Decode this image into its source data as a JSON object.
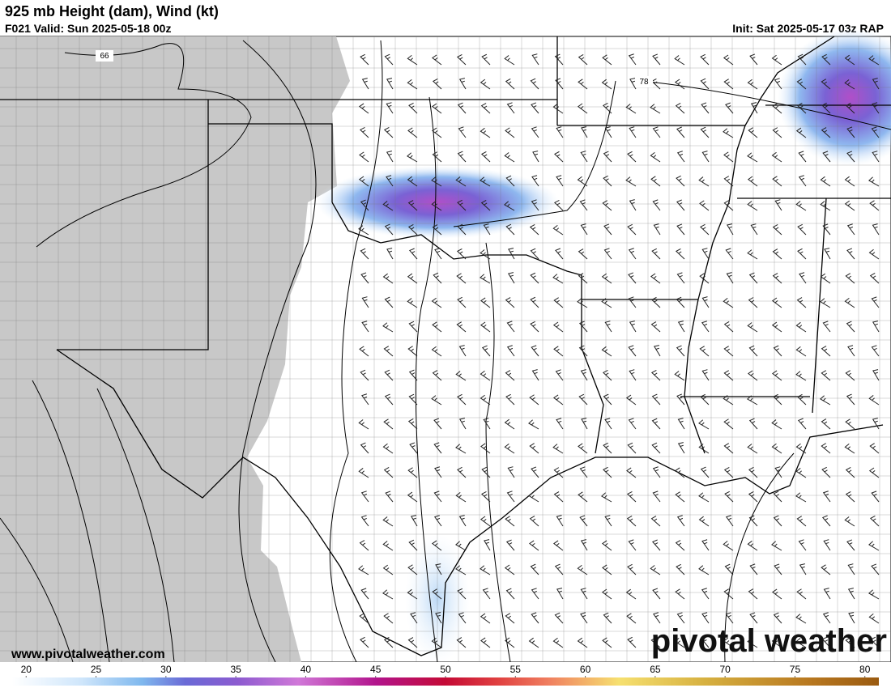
{
  "header": {
    "title": "925 mb Height (dam), Wind (kt)",
    "valid": "F021 Valid: Sun 2025-05-18 00z",
    "init": "Init: Sat 2025-05-17 03z RAP"
  },
  "map": {
    "contour_labels": [
      "66",
      "78"
    ],
    "website": "www.pivotalweather.com",
    "logo": "pivotal weather"
  },
  "colorbar": {
    "range": [
      19,
      81
    ],
    "ticks": [
      20,
      25,
      30,
      35,
      40,
      45,
      50,
      55,
      60,
      65,
      70,
      75,
      80
    ]
  }
}
